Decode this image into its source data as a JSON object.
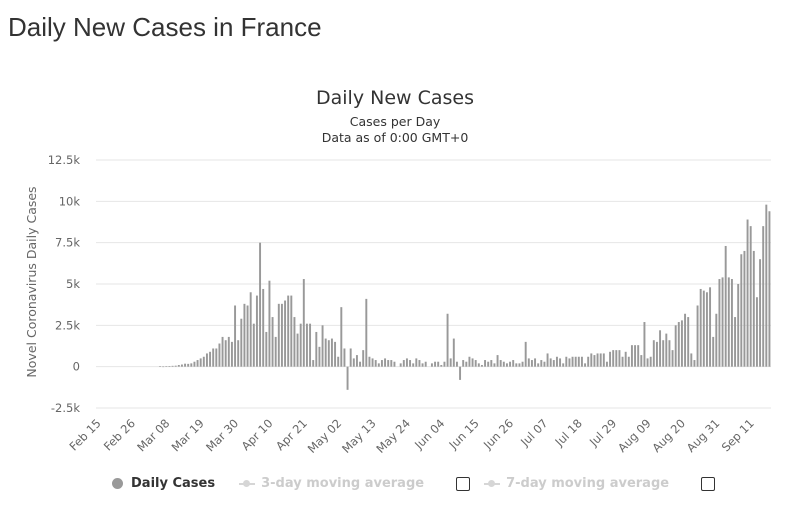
{
  "page": {
    "title": "Daily New Cases in France"
  },
  "legend": {
    "daily": "Daily Cases",
    "avg3": "3-day moving average",
    "avg7": "7-day moving average"
  },
  "chart_data": {
    "type": "bar",
    "title": "Daily New Cases",
    "subtitle": "Cases per Day",
    "subtitle2": "Data as of 0:00 GMT+0",
    "ylabel": "Novel Coronavirus Daily Cases",
    "xlabel": "",
    "ylim": [
      -2500,
      12500
    ],
    "yticks": [
      -2500,
      0,
      2500,
      5000,
      7500,
      10000,
      12500
    ],
    "ytick_labels": [
      "-2.5k",
      "0",
      "2.5k",
      "5k",
      "7.5k",
      "10k",
      "12.5k"
    ],
    "grid": true,
    "legend_position": "bottom",
    "bar_color": "#999999",
    "x_tick_labels": [
      "Feb 15",
      "Feb 26",
      "Mar 08",
      "Mar 19",
      "Mar 30",
      "Apr 10",
      "Apr 21",
      "May 02",
      "May 13",
      "May 24",
      "Jun 04",
      "Jun 15",
      "Jun 26",
      "Jul 07",
      "Jul 18",
      "Jul 29",
      "Aug 09",
      "Aug 20",
      "Aug 31",
      "Sep 11"
    ],
    "x_start_label": "Feb 15",
    "x_interval_days": 11,
    "series": [
      {
        "name": "Daily Cases",
        "values": [
          0,
          0,
          0,
          0,
          0,
          0,
          0,
          0,
          0,
          0,
          0,
          0,
          0,
          0,
          0,
          0,
          0,
          0,
          0,
          0,
          20,
          10,
          30,
          40,
          50,
          60,
          100,
          130,
          180,
          170,
          200,
          300,
          400,
          500,
          600,
          800,
          900,
          1100,
          1100,
          1400,
          1800,
          1600,
          1800,
          1500,
          3700,
          1600,
          2900,
          3800,
          3700,
          4500,
          2600,
          4300,
          7500,
          4700,
          2100,
          5200,
          3000,
          1800,
          3800,
          3800,
          4000,
          4300,
          4300,
          3000,
          2000,
          2600,
          5300,
          2600,
          2600,
          400,
          2100,
          1200,
          2500,
          1700,
          1600,
          1700,
          1500,
          600,
          3600,
          1100,
          -1400,
          1100,
          500,
          700,
          300,
          1000,
          4100,
          600,
          500,
          400,
          200,
          400,
          500,
          400,
          400,
          300,
          0,
          200,
          400,
          500,
          400,
          200,
          500,
          400,
          200,
          300,
          0,
          200,
          300,
          300,
          100,
          300,
          3200,
          500,
          1700,
          300,
          -800,
          400,
          300,
          600,
          500,
          400,
          200,
          100,
          400,
          300,
          400,
          200,
          700,
          400,
          300,
          200,
          300,
          400,
          200,
          200,
          300,
          1500,
          500,
          400,
          500,
          200,
          400,
          300,
          800,
          500,
          400,
          600,
          500,
          200,
          600,
          500,
          600,
          600,
          600,
          600,
          200,
          600,
          800,
          700,
          800,
          800,
          800,
          300,
          900,
          1000,
          1000,
          1000,
          600,
          900,
          600,
          1300,
          1300,
          1300,
          700,
          2700,
          500,
          600,
          1600,
          1500,
          2200,
          1600,
          2000,
          1600,
          1000,
          2500,
          2700,
          2800,
          3200,
          3000,
          800,
          400,
          3700,
          4700,
          4600,
          4500,
          4800,
          1800,
          3200,
          5300,
          5400,
          7300,
          5400,
          5300,
          3000,
          5000,
          6800,
          7000,
          8900,
          8500,
          7000,
          4200,
          6500,
          8500,
          9800,
          9400
        ]
      }
    ]
  }
}
